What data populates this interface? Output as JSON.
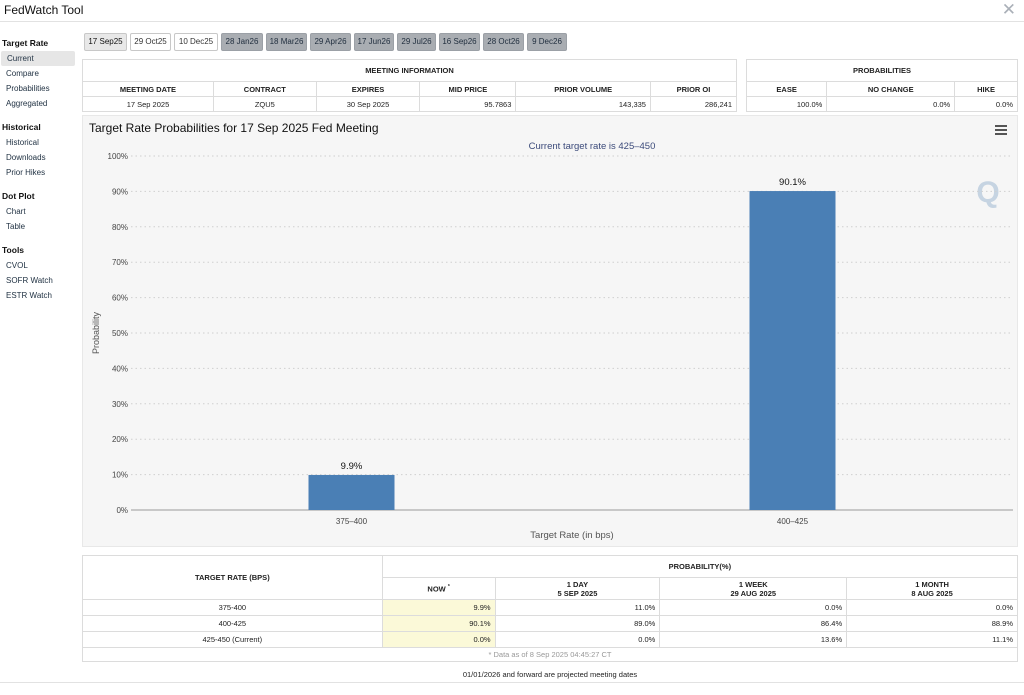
{
  "app": {
    "title": "FedWatch Tool",
    "close_glyph": "✕"
  },
  "sidebar": {
    "sections": [
      {
        "heading": "Target Rate",
        "items": [
          "Current",
          "Compare",
          "Probabilities",
          "Aggregated"
        ]
      },
      {
        "heading": "Historical",
        "items": [
          "Historical",
          "Downloads",
          "Prior Hikes"
        ]
      },
      {
        "heading": "Dot Plot",
        "items": [
          "Chart",
          "Table"
        ]
      },
      {
        "heading": "Tools",
        "items": [
          "CVOL",
          "SOFR Watch",
          "ESTR Watch"
        ]
      }
    ],
    "active_item": "Current"
  },
  "tabs": [
    "17 Sep25",
    "29 Oct25",
    "10 Dec25",
    "28 Jan26",
    "18 Mar26",
    "29 Apr26",
    "17 Jun26",
    "29 Jul26",
    "16 Sep26",
    "28 Oct26",
    "9 Dec26"
  ],
  "meeting_info": {
    "caption": "MEETING INFORMATION",
    "headers": [
      "MEETING DATE",
      "CONTRACT",
      "EXPIRES",
      "MID PRICE",
      "PRIOR VOLUME",
      "PRIOR OI"
    ],
    "row": [
      "17 Sep 2025",
      "ZQU5",
      "30 Sep 2025",
      "95.7863",
      "143,335",
      "286,241"
    ]
  },
  "probabilities": {
    "caption": "PROBABILITIES",
    "headers": [
      "EASE",
      "NO CHANGE",
      "HIKE"
    ],
    "row": [
      "100.0%",
      "0.0%",
      "0.0%"
    ]
  },
  "chart": {
    "title": "Target Rate Probabilities for 17 Sep 2025 Fed Meeting",
    "subtitle": "Current target rate is 425–450",
    "watermark": "Q",
    "menu_icon": "hamburger-menu-icon"
  },
  "chart_data": {
    "type": "bar",
    "title": "Target Rate Probabilities for 17 Sep 2025 Fed Meeting",
    "subtitle": "Current target rate is 425–450",
    "categories": [
      "375–400",
      "400–425"
    ],
    "values": [
      9.9,
      90.1
    ],
    "data_labels": [
      "9.9%",
      "90.1%"
    ],
    "xlabel": "Target Rate (in bps)",
    "ylabel": "Probability",
    "ylim": [
      0,
      100
    ],
    "yticks": [
      "0%",
      "10%",
      "20%",
      "30%",
      "40%",
      "50%",
      "60%",
      "70%",
      "80%",
      "90%",
      "100%"
    ],
    "grid": true,
    "bar_color": "#4a7fb5"
  },
  "prob_table": {
    "rate_header": "TARGET RATE (BPS)",
    "group_header": "PROBABILITY(%)",
    "col_headers": [
      {
        "line1": "NOW",
        "line2": ""
      },
      {
        "line1": "1 DAY",
        "line2": "5 SEP 2025"
      },
      {
        "line1": "1 WEEK",
        "line2": "29 AUG 2025"
      },
      {
        "line1": "1 MONTH",
        "line2": "8 AUG 2025"
      }
    ],
    "now_marker": "*",
    "rows": [
      {
        "rate": "375-400",
        "vals": [
          "9.9%",
          "11.0%",
          "0.0%",
          "0.0%"
        ]
      },
      {
        "rate": "400-425",
        "vals": [
          "90.1%",
          "89.0%",
          "86.4%",
          "88.9%"
        ]
      },
      {
        "rate": "425-450 (Current)",
        "vals": [
          "0.0%",
          "0.0%",
          "13.6%",
          "11.1%"
        ]
      }
    ],
    "note": "* Data as of 8 Sep 2025 04:45:27 CT"
  },
  "footer": {
    "note": "01/01/2026 and forward are projected meeting dates"
  }
}
